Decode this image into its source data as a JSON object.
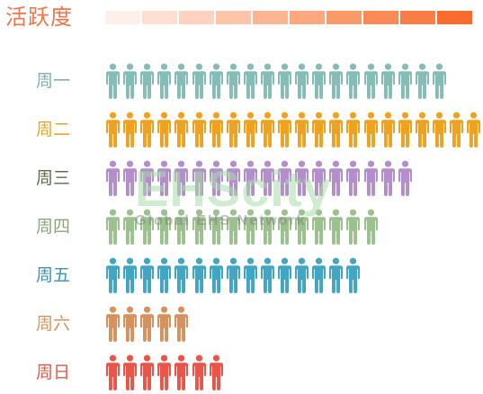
{
  "chart_data": {
    "type": "pictogram",
    "title": "活跃度",
    "scale_colors": [
      "#fdf0ea",
      "#fde0d2",
      "#fdd3bf",
      "#fcc4a9",
      "#fcb592",
      "#fca77f",
      "#fc9969",
      "#fb8a57",
      "#fb7c45",
      "#fa6b2e"
    ],
    "categories": [
      "周一",
      "周二",
      "周三",
      "周四",
      "周五",
      "周六",
      "周日"
    ],
    "series": [
      {
        "values": [
          20,
          22,
          18,
          16,
          15,
          5,
          7
        ]
      }
    ],
    "row_colors": [
      "#85bdb6",
      "#efa120",
      "#b28fca",
      "#9cc08e",
      "#40a6c4",
      "#d6925e",
      "#ea5449"
    ],
    "label_colors": [
      "#7ab3ad",
      "#e8a52b",
      "#5a6e48",
      "#8aa67a",
      "#3a92b6",
      "#d89359",
      "#e05a48"
    ],
    "icon": "person-icon"
  },
  "watermark": {
    "logo": "EHScity",
    "subtitle": "Global EHS Network"
  }
}
